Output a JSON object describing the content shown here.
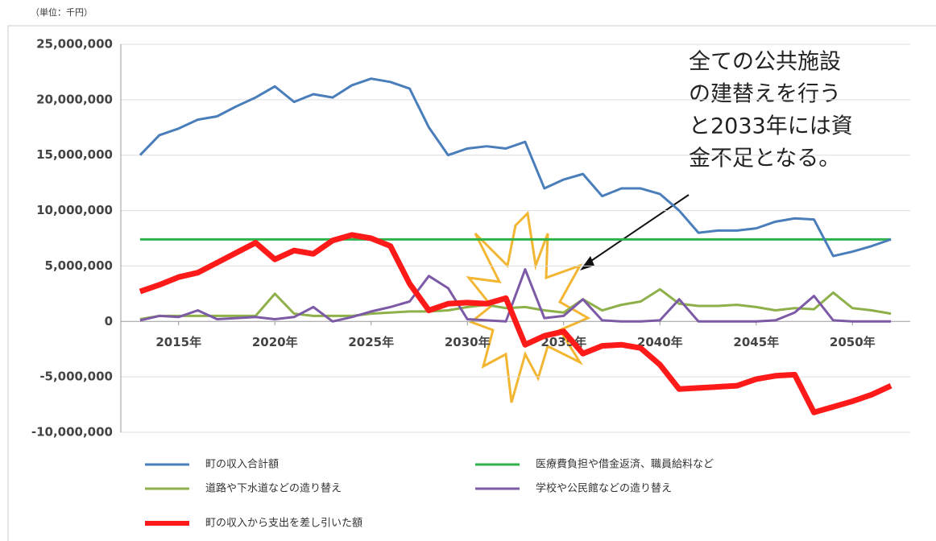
{
  "chart_data": {
    "type": "line",
    "unit_label": "（単位：千円）",
    "annotation": [
      "全ての公共施設",
      "の建替えを行う",
      "と2033年には資",
      "金不足となる。"
    ],
    "x": [
      2013,
      2014,
      2015,
      2016,
      2017,
      2018,
      2019,
      2020,
      2021,
      2022,
      2023,
      2024,
      2025,
      2026,
      2027,
      2028,
      2029,
      2030,
      2031,
      2032,
      2033,
      2034,
      2035,
      2036,
      2037,
      2038,
      2039,
      2040,
      2041,
      2042,
      2043,
      2044,
      2045,
      2046,
      2047,
      2048,
      2049,
      2050,
      2051,
      2052
    ],
    "xlim": [
      2012,
      2053
    ],
    "xticks": [
      {
        "value": 2015,
        "label": "2015年"
      },
      {
        "value": 2020,
        "label": "2020年"
      },
      {
        "value": 2025,
        "label": "2025年"
      },
      {
        "value": 2030,
        "label": "2030年"
      },
      {
        "value": 2035,
        "label": "2035年"
      },
      {
        "value": 2040,
        "label": "2040年"
      },
      {
        "value": 2045,
        "label": "2045年"
      },
      {
        "value": 2050,
        "label": "2050年"
      }
    ],
    "ylim": [
      -10000000,
      25000000
    ],
    "yticks": [
      {
        "value": -10000000,
        "label": "-10,000,000"
      },
      {
        "value": -5000000,
        "label": "-5,000,000"
      },
      0,
      {
        "value": 5000000,
        "label": "5,000,000"
      },
      {
        "value": 10000000,
        "label": "10,000,000"
      },
      {
        "value": 15000000,
        "label": "15,000,000"
      },
      {
        "value": 20000000,
        "label": "20,000,000"
      },
      {
        "value": 25000000,
        "label": "25,000,000"
      }
    ],
    "grid": true,
    "series": [
      {
        "name": "町の収入合計額",
        "color": "#4a7ebb",
        "values": [
          15000000,
          16800000,
          17400000,
          18200000,
          18500000,
          19400000,
          20200000,
          21200000,
          19800000,
          20500000,
          20200000,
          21300000,
          21900000,
          21600000,
          21000000,
          17500000,
          15000000,
          15600000,
          15800000,
          15600000,
          16200000,
          12000000,
          12800000,
          13300000,
          11300000,
          12000000,
          12000000,
          11500000,
          10000000,
          8000000,
          8200000,
          8200000,
          8400000,
          9000000,
          9300000,
          9200000,
          5900000,
          6300000,
          6800000,
          7400000
        ]
      },
      {
        "name": "医療費負担や借金返済、職員給料など",
        "color": "#2db34a",
        "values": [
          7400000,
          7400000,
          7400000,
          7400000,
          7400000,
          7400000,
          7400000,
          7400000,
          7400000,
          7400000,
          7400000,
          7400000,
          7400000,
          7400000,
          7400000,
          7400000,
          7400000,
          7400000,
          7400000,
          7400000,
          7400000,
          7400000,
          7400000,
          7400000,
          7400000,
          7400000,
          7400000,
          7400000,
          7400000,
          7400000,
          7400000,
          7400000,
          7400000,
          7400000,
          7400000,
          7400000,
          7400000,
          7400000,
          7400000,
          7400000
        ]
      },
      {
        "name": "道路や下水道などの造り替え",
        "color": "#8db04a",
        "values": [
          200000,
          500000,
          500000,
          500000,
          500000,
          500000,
          500000,
          2500000,
          700000,
          500000,
          500000,
          500000,
          700000,
          800000,
          900000,
          900000,
          1000000,
          1300000,
          1500000,
          1200000,
          1300000,
          1000000,
          800000,
          2000000,
          1000000,
          1500000,
          1800000,
          2900000,
          1600000,
          1400000,
          1400000,
          1500000,
          1300000,
          1000000,
          1200000,
          1100000,
          2600000,
          1200000,
          1000000,
          700000
        ]
      },
      {
        "name": "学校や公民館などの造り替え",
        "color": "#7d5aa6",
        "values": [
          100000,
          500000,
          400000,
          1000000,
          200000,
          300000,
          400000,
          200000,
          400000,
          1300000,
          0,
          400000,
          900000,
          1300000,
          1800000,
          4100000,
          3000000,
          200000,
          100000,
          0,
          4700000,
          300000,
          500000,
          2000000,
          100000,
          0,
          0,
          100000,
          2000000,
          0,
          0,
          0,
          0,
          100000,
          800000,
          2300000,
          100000,
          0,
          0,
          0
        ]
      },
      {
        "name": "町の収入から支出を差し引いた額",
        "color": "#ff1a1a",
        "width": 7,
        "values": [
          2700000,
          3300000,
          4000000,
          4400000,
          5300000,
          6200000,
          7100000,
          5600000,
          6400000,
          6100000,
          7300000,
          7800000,
          7500000,
          6800000,
          3400000,
          1000000,
          1600000,
          1700000,
          1600000,
          2100000,
          -2100000,
          -1300000,
          -900000,
          -2900000,
          -2200000,
          -2100000,
          -2400000,
          -3900000,
          -6100000,
          -6000000,
          -5900000,
          -5800000,
          -5200000,
          -4900000,
          -4800000,
          -8200000,
          -7700000,
          -7200000,
          -6600000,
          -5800000
        ]
      }
    ]
  }
}
